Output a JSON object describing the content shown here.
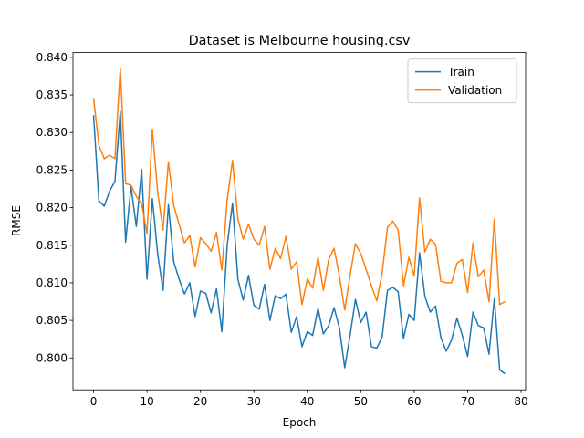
{
  "chart_data": {
    "type": "line",
    "title": "Dataset is Melbourne housing.csv",
    "x_label": "Epoch",
    "y_label": "RMSE",
    "x": [
      0,
      1,
      2,
      3,
      4,
      5,
      6,
      7,
      8,
      9,
      10,
      11,
      12,
      13,
      14,
      15,
      16,
      17,
      18,
      19,
      20,
      21,
      22,
      23,
      24,
      25,
      26,
      27,
      28,
      29,
      30,
      31,
      32,
      33,
      34,
      35,
      36,
      37,
      38,
      39,
      40,
      41,
      42,
      43,
      44,
      45,
      46,
      47,
      48,
      49,
      50,
      51,
      52,
      53,
      54,
      55,
      56,
      57,
      58,
      59,
      60,
      61,
      62,
      63,
      64,
      65,
      66,
      67,
      68,
      69,
      70,
      71,
      72,
      73,
      74,
      75,
      76,
      77
    ],
    "series": [
      {
        "name": "Train",
        "color": "#1f77b4",
        "values": [
          0.8323,
          0.8209,
          0.8202,
          0.8222,
          0.8235,
          0.8328,
          0.8154,
          0.8228,
          0.8175,
          0.8251,
          0.8105,
          0.8212,
          0.8138,
          0.809,
          0.8204,
          0.8128,
          0.8105,
          0.8085,
          0.81,
          0.8055,
          0.8089,
          0.8086,
          0.806,
          0.8092,
          0.8035,
          0.815,
          0.8206,
          0.8105,
          0.8077,
          0.811,
          0.807,
          0.8065,
          0.8098,
          0.805,
          0.8083,
          0.8079,
          0.8085,
          0.8034,
          0.8055,
          0.8015,
          0.8035,
          0.803,
          0.8066,
          0.8032,
          0.8043,
          0.8067,
          0.804,
          0.7987,
          0.803,
          0.8078,
          0.8047,
          0.8061,
          0.8015,
          0.8013,
          0.8028,
          0.809,
          0.8094,
          0.8088,
          0.8026,
          0.8058,
          0.805,
          0.814,
          0.8082,
          0.8061,
          0.8069,
          0.8027,
          0.8009,
          0.8024,
          0.8053,
          0.803,
          0.8002,
          0.8061,
          0.8043,
          0.804,
          0.8005,
          0.8079,
          0.7984,
          0.7979
        ]
      },
      {
        "name": "Validation",
        "color": "#ff7f0e",
        "values": [
          0.8346,
          0.8283,
          0.8265,
          0.827,
          0.8265,
          0.8386,
          0.8232,
          0.823,
          0.8215,
          0.8205,
          0.8166,
          0.8304,
          0.822,
          0.817,
          0.8261,
          0.8203,
          0.8178,
          0.8153,
          0.8163,
          0.8121,
          0.816,
          0.8152,
          0.8142,
          0.8167,
          0.8117,
          0.821,
          0.8263,
          0.8185,
          0.8158,
          0.8178,
          0.8158,
          0.815,
          0.8175,
          0.8118,
          0.8146,
          0.8132,
          0.8162,
          0.8118,
          0.8128,
          0.8071,
          0.8105,
          0.8093,
          0.8134,
          0.809,
          0.8131,
          0.8146,
          0.8109,
          0.8064,
          0.811,
          0.8152,
          0.8139,
          0.8118,
          0.8096,
          0.8076,
          0.8113,
          0.8174,
          0.8182,
          0.817,
          0.8096,
          0.8134,
          0.8109,
          0.8213,
          0.8141,
          0.8158,
          0.8151,
          0.8102,
          0.81,
          0.81,
          0.8126,
          0.8131,
          0.8087,
          0.8153,
          0.8108,
          0.8117,
          0.8075,
          0.8185,
          0.8071,
          0.8075
        ]
      }
    ],
    "xlim": [
      -3.85,
      80.85
    ],
    "xticks": [
      0,
      10,
      20,
      30,
      40,
      50,
      60,
      70,
      80
    ],
    "ylim": [
      0.79576,
      0.84064
    ],
    "yticks": [
      {
        "value": 0.8,
        "label": "0.800"
      },
      0.805,
      {
        "value": 0.81,
        "label": "0.810"
      },
      0.815,
      {
        "value": 0.82,
        "label": "0.820"
      },
      0.825,
      {
        "value": 0.83,
        "label": "0.830"
      },
      0.835,
      {
        "value": 0.84,
        "label": "0.840"
      }
    ],
    "grid": false,
    "legend": "upper right"
  }
}
